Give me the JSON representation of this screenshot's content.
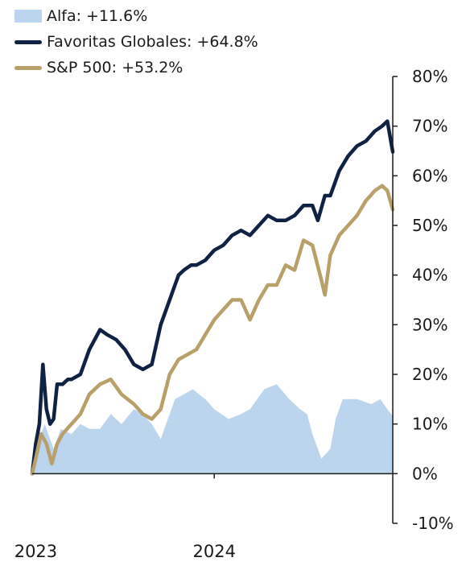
{
  "legend": [
    {
      "label": "Alfa: +11.6%",
      "style": "area",
      "color": "#bcd5ee"
    },
    {
      "label": "Favoritas Globales: +64.8%",
      "style": "line",
      "color": "#0f2244"
    },
    {
      "label": "S&P 500: +53.2%",
      "style": "line",
      "color": "#b9a06a"
    }
  ],
  "chart_data": {
    "type": "line",
    "title": "",
    "xlabel": "",
    "ylabel": "",
    "y_axis_position": "right",
    "ylim": [
      -10,
      80
    ],
    "yticks": [
      "80%",
      "70%",
      "60%",
      "50%",
      "40%",
      "30%",
      "20%",
      "10%",
      "0%",
      "-10%"
    ],
    "ytick_values": [
      80,
      70,
      60,
      50,
      40,
      30,
      20,
      10,
      0,
      -10
    ],
    "xticks": [
      {
        "label": "2023",
        "x": 2023.0
      },
      {
        "label": "2024",
        "x": 2024.0
      }
    ],
    "xlim": [
      2022.98,
      2025.0
    ],
    "legend_position": "top-left",
    "grid": false,
    "series": [
      {
        "name": "Alfa: +11.6%",
        "kind": "area",
        "color": "#bcd5ee",
        "x": [
          2022.98,
          2023.0,
          2023.03,
          2023.05,
          2023.08,
          2023.1,
          2023.14,
          2023.2,
          2023.25,
          2023.3,
          2023.36,
          2023.42,
          2023.48,
          2023.55,
          2023.6,
          2023.65,
          2023.7,
          2023.78,
          2023.83,
          2023.88,
          2023.95,
          2024.0,
          2024.08,
          2024.15,
          2024.2,
          2024.28,
          2024.35,
          2024.42,
          2024.48,
          2024.52,
          2024.55,
          2024.6,
          2024.65,
          2024.68,
          2024.72,
          2024.75,
          2024.8,
          2024.88,
          2024.93,
          2024.97,
          2025.0
        ],
        "y": [
          0,
          4,
          8,
          10,
          7,
          5,
          9,
          8,
          10,
          9,
          9,
          12,
          10,
          13,
          12,
          10,
          7,
          15,
          16,
          17,
          15,
          13,
          11,
          12,
          13,
          17,
          18,
          15,
          13,
          12,
          8,
          3,
          5,
          11,
          15,
          15,
          15,
          14,
          15,
          13,
          11.6
        ]
      },
      {
        "name": "Favoritas Globales: +64.8%",
        "kind": "line",
        "color": "#0f2244",
        "x": [
          2022.98,
          2023.0,
          2023.02,
          2023.04,
          2023.06,
          2023.08,
          2023.1,
          2023.12,
          2023.15,
          2023.18,
          2023.2,
          2023.25,
          2023.3,
          2023.36,
          2023.4,
          2023.45,
          2023.5,
          2023.55,
          2023.6,
          2023.65,
          2023.7,
          2023.75,
          2023.78,
          2023.8,
          2023.83,
          2023.87,
          2023.9,
          2023.95,
          2024.0,
          2024.05,
          2024.1,
          2024.15,
          2024.2,
          2024.25,
          2024.3,
          2024.35,
          2024.4,
          2024.45,
          2024.5,
          2024.55,
          2024.58,
          2024.62,
          2024.65,
          2024.7,
          2024.75,
          2024.8,
          2024.85,
          2024.9,
          2024.94,
          2024.97,
          2025.0
        ],
        "y": [
          0,
          6,
          10,
          22,
          13,
          10,
          11,
          18,
          18,
          19,
          19,
          20,
          25,
          29,
          28,
          27,
          25,
          22,
          21,
          22,
          30,
          35,
          38,
          40,
          41,
          42,
          42,
          43,
          45,
          46,
          48,
          49,
          48,
          50,
          52,
          51,
          51,
          52,
          54,
          54,
          51,
          56,
          56,
          61,
          64,
          66,
          67,
          69,
          70,
          71,
          64.8
        ]
      },
      {
        "name": "S&P 500: +53.2%",
        "kind": "line",
        "color": "#b9a06a",
        "x": [
          2022.98,
          2023.0,
          2023.03,
          2023.06,
          2023.09,
          2023.12,
          2023.15,
          2023.2,
          2023.25,
          2023.3,
          2023.36,
          2023.42,
          2023.48,
          2023.55,
          2023.6,
          2023.65,
          2023.7,
          2023.75,
          2023.8,
          2023.85,
          2023.9,
          2023.95,
          2024.0,
          2024.05,
          2024.1,
          2024.15,
          2024.2,
          2024.25,
          2024.3,
          2024.35,
          2024.4,
          2024.45,
          2024.5,
          2024.55,
          2024.6,
          2024.62,
          2024.65,
          2024.7,
          2024.75,
          2024.8,
          2024.85,
          2024.9,
          2024.94,
          2024.97,
          2025.0
        ],
        "y": [
          0,
          3,
          8,
          6,
          2,
          6,
          8,
          10,
          12,
          16,
          18,
          19,
          16,
          14,
          12,
          11,
          13,
          20,
          23,
          24,
          25,
          28,
          31,
          33,
          35,
          35,
          31,
          35,
          38,
          38,
          42,
          41,
          47,
          46,
          39,
          36,
          44,
          48,
          50,
          52,
          55,
          57,
          58,
          57,
          53.2
        ]
      }
    ]
  }
}
